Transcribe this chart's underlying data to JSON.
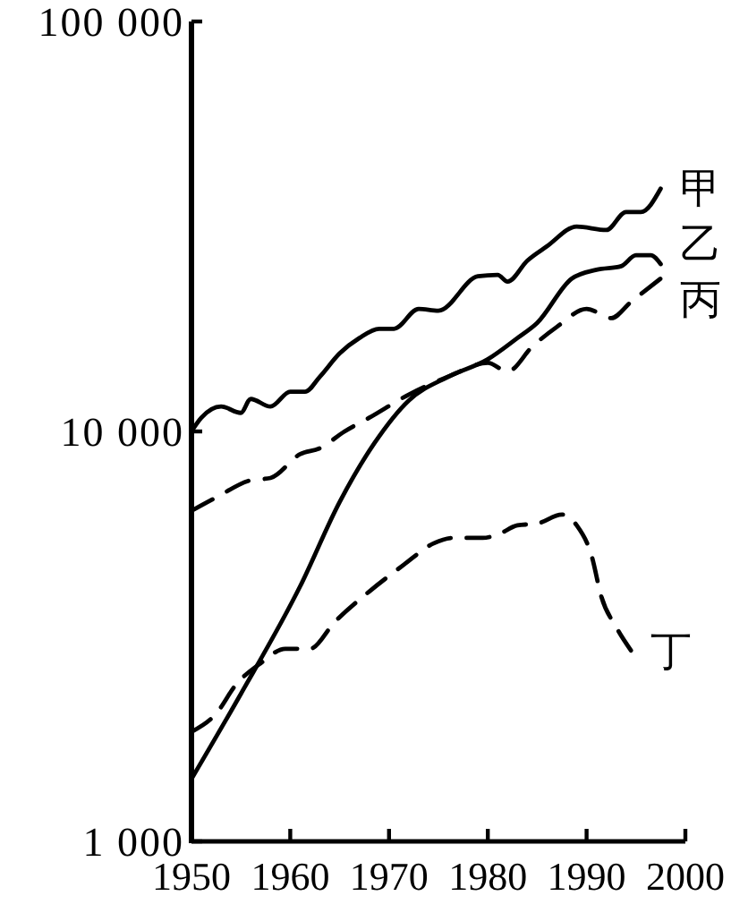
{
  "chart_data": {
    "type": "line",
    "xlim": [
      1950,
      2000
    ],
    "xticks": [
      1950,
      1960,
      1970,
      1980,
      1990,
      2000
    ],
    "ylim": [
      1000,
      100000
    ],
    "yticks": [
      {
        "value": 1000,
        "label": "1 000"
      },
      {
        "value": 10000,
        "label": "10 000"
      },
      {
        "value": 100000,
        "label": "100 000"
      }
    ],
    "log": "y",
    "series": [
      {
        "name": "甲",
        "color": "#000000",
        "line_style": "solid",
        "x": [
          1950,
          1951,
          1953,
          1955,
          1956,
          1958,
          1960,
          1961.5,
          1963,
          1965,
          1967,
          1969,
          1970.5,
          1973,
          1975,
          1979,
          1981,
          1982,
          1984,
          1986,
          1989,
          1992,
          1994,
          1995.5,
          1997.5
        ],
        "values": [
          10000,
          10800,
          11500,
          11100,
          12000,
          11500,
          12500,
          12500,
          13600,
          15500,
          16900,
          17800,
          17800,
          19900,
          19700,
          23900,
          24100,
          23200,
          26100,
          28300,
          31600,
          31000,
          34300,
          34300,
          39100
        ]
      },
      {
        "name": "乙",
        "color": "#000000",
        "line_style": "solid",
        "x": [
          1950,
          1955,
          1961,
          1965,
          1968.5,
          1972,
          1976,
          1980,
          1983,
          1985,
          1988.5,
          1991,
          1993.5,
          1995,
          1996.5,
          1997.5
        ],
        "values": [
          1420,
          2290,
          4190,
          6730,
          9350,
          11900,
          13600,
          15000,
          16900,
          18400,
          23600,
          24800,
          25300,
          26900,
          26900,
          25600
        ]
      },
      {
        "name": "丙",
        "color": "#000000",
        "line_style": "dashed",
        "x": [
          1950,
          1952.5,
          1956,
          1958,
          1961,
          1963,
          1965.5,
          1968,
          1972,
          1976,
          1980,
          1982,
          1984.5,
          1987,
          1990,
          1992.5,
          1994.5,
          1997.5
        ],
        "values": [
          6400,
          6900,
          7600,
          7700,
          8800,
          9100,
          10000,
          10800,
          12300,
          13600,
          14700,
          14000,
          16100,
          18000,
          19900,
          18900,
          20700,
          23600
        ]
      },
      {
        "name": "丁",
        "color": "#000000",
        "line_style": "dashed",
        "x": [
          1950,
          1952.5,
          1954.5,
          1957,
          1959.5,
          1962,
          1964.5,
          1968,
          1971.5,
          1974.5,
          1976.5,
          1979.5,
          1981,
          1983,
          1985,
          1987.5,
          1989,
          1990.5,
          1991.5,
          1993,
          1994.5
        ],
        "values": [
          1850,
          2050,
          2410,
          2720,
          2950,
          2950,
          3430,
          4070,
          4730,
          5330,
          5500,
          5500,
          5600,
          5900,
          5960,
          6270,
          5900,
          4980,
          3950,
          3330,
          2920
        ]
      }
    ]
  }
}
